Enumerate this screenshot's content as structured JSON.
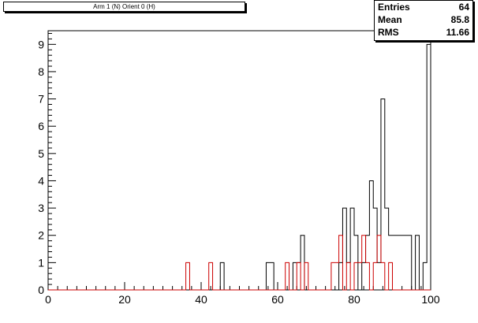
{
  "title": "Arm 1 (N) Orient 0 (H)",
  "stats": {
    "entries_label": "Entries",
    "entries_value": "64",
    "mean_label": "Mean",
    "mean_value": "85.8",
    "rms_label": "RMS",
    "rms_value": "11.66"
  },
  "chart_data": {
    "type": "bar",
    "histogram": true,
    "bin_width": 1,
    "xlim": [
      0,
      100
    ],
    "ylim": [
      0,
      9.5
    ],
    "x_ticks": [
      0,
      20,
      40,
      60,
      80,
      100
    ],
    "y_ticks": [
      0,
      1,
      2,
      3,
      4,
      5,
      6,
      7,
      8,
      9
    ],
    "series": [
      {
        "color": "#000000",
        "bins": [
          {
            "x": 45,
            "y": 1
          },
          {
            "x": 57,
            "y": 1
          },
          {
            "x": 58,
            "y": 1
          },
          {
            "x": 64,
            "y": 1
          },
          {
            "x": 65,
            "y": 1
          },
          {
            "x": 66,
            "y": 2
          },
          {
            "x": 76,
            "y": 1
          },
          {
            "x": 77,
            "y": 3
          },
          {
            "x": 78,
            "y": 1
          },
          {
            "x": 79,
            "y": 3
          },
          {
            "x": 80,
            "y": 2
          },
          {
            "x": 82,
            "y": 1
          },
          {
            "x": 83,
            "y": 2
          },
          {
            "x": 84,
            "y": 4
          },
          {
            "x": 85,
            "y": 3
          },
          {
            "x": 86,
            "y": 1
          },
          {
            "x": 87,
            "y": 7
          },
          {
            "x": 88,
            "y": 3
          },
          {
            "x": 89,
            "y": 2
          },
          {
            "x": 90,
            "y": 2
          },
          {
            "x": 91,
            "y": 2
          },
          {
            "x": 92,
            "y": 2
          },
          {
            "x": 93,
            "y": 2
          },
          {
            "x": 94,
            "y": 2
          },
          {
            "x": 96,
            "y": 2
          },
          {
            "x": 98,
            "y": 1
          },
          {
            "x": 99,
            "y": 9
          }
        ]
      },
      {
        "color": "#cc0000",
        "bins": [
          {
            "x": 36,
            "y": 1
          },
          {
            "x": 42,
            "y": 1
          },
          {
            "x": 62,
            "y": 1
          },
          {
            "x": 65,
            "y": 1
          },
          {
            "x": 67,
            "y": 1
          },
          {
            "x": 74,
            "y": 1
          },
          {
            "x": 75,
            "y": 1
          },
          {
            "x": 76,
            "y": 2
          },
          {
            "x": 78,
            "y": 1
          },
          {
            "x": 80,
            "y": 1
          },
          {
            "x": 81,
            "y": 1
          },
          {
            "x": 82,
            "y": 2
          },
          {
            "x": 83,
            "y": 1
          },
          {
            "x": 85,
            "y": 1
          },
          {
            "x": 86,
            "y": 2
          },
          {
            "x": 87,
            "y": 1
          },
          {
            "x": 89,
            "y": 1
          }
        ]
      }
    ]
  }
}
